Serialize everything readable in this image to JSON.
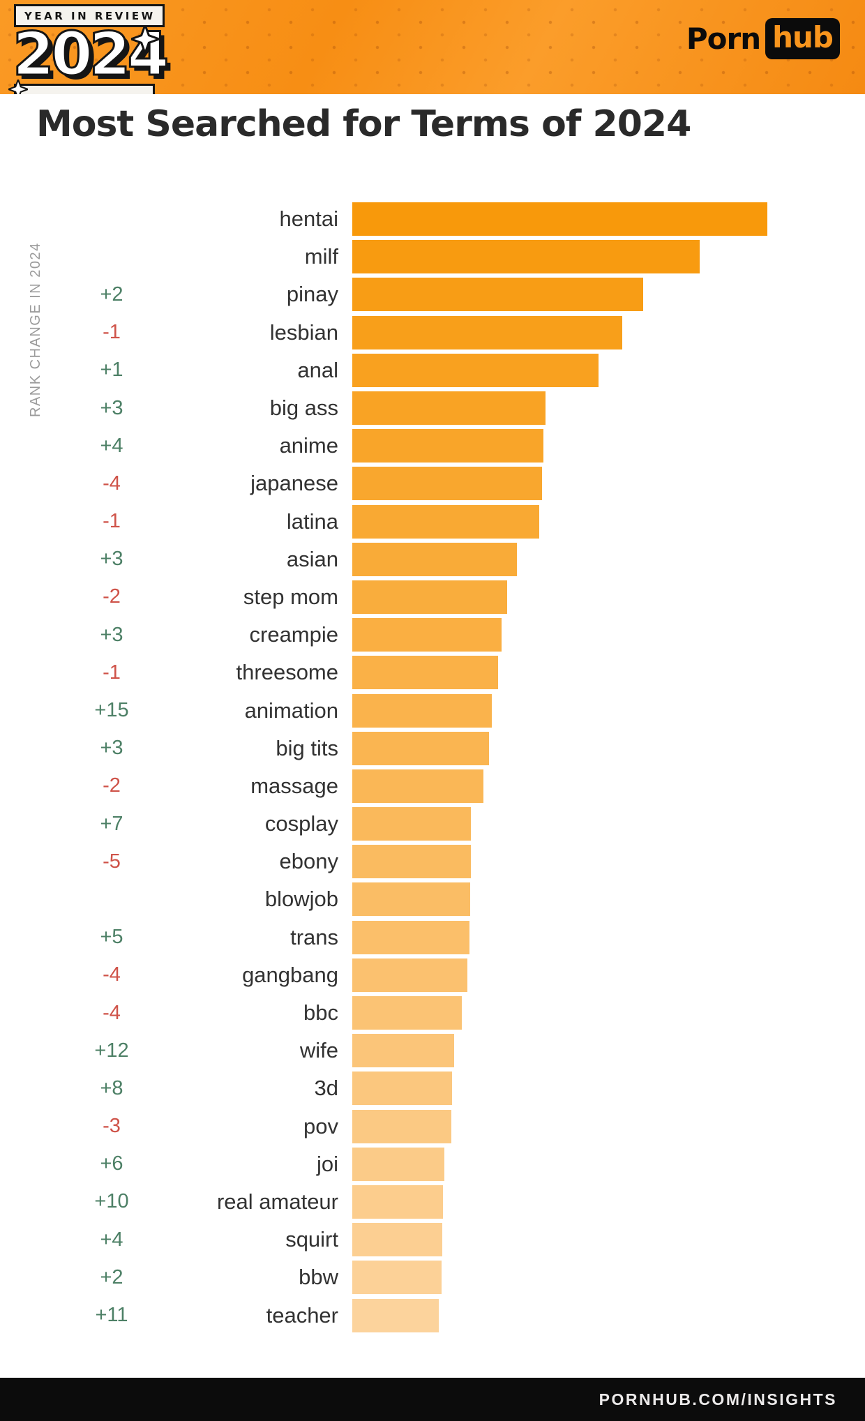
{
  "header": {
    "badge_label": "YEAR IN REVIEW",
    "badge_year": "2024",
    "logo_part1": "Porn",
    "logo_part2": "hub"
  },
  "title": "Most Searched for Terms of 2024",
  "axis_label": "RANK CHANGE IN 2024",
  "footer": {
    "url": "PORNHUB.COM/INSIGHTS"
  },
  "colors": {
    "header_orange": "#f8921c",
    "bar_color_start": "#f8990b",
    "bar_color_end": "#fcd39c",
    "positive_green": "#4d8066",
    "negative_red": "#cf5349",
    "text_dark": "#2a2a2a",
    "footer_black": "#0c0c0c"
  },
  "chart_data": {
    "type": "bar",
    "orientation": "horizontal",
    "title": "Most Searched for Terms of 2024",
    "note": "values are relative search volume, % of top term (estimated from bar lengths); no numeric axis shown in source",
    "legend": "none",
    "grid": false,
    "xlim": [
      0,
      100
    ],
    "categories": [
      "hentai",
      "milf",
      "pinay",
      "lesbian",
      "anal",
      "big ass",
      "anime",
      "japanese",
      "latina",
      "asian",
      "step mom",
      "creampie",
      "threesome",
      "animation",
      "big tits",
      "massage",
      "cosplay",
      "ebony",
      "blowjob",
      "trans",
      "gangbang",
      "bbc",
      "wife",
      "3d",
      "pov",
      "joi",
      "real amateur",
      "squirt",
      "bbw",
      "teacher"
    ],
    "values": [
      100,
      83.7,
      70.1,
      65.0,
      59.3,
      46.6,
      46.1,
      45.7,
      45.0,
      39.7,
      37.3,
      36.0,
      35.1,
      33.6,
      32.9,
      31.6,
      28.6,
      28.5,
      28.4,
      28.2,
      27.7,
      26.4,
      24.5,
      24.0,
      23.9,
      22.2,
      21.8,
      21.7,
      21.5,
      20.8
    ],
    "rank_changes": [
      "",
      "",
      "+2",
      "-1",
      "+1",
      "+3",
      "+4",
      "-4",
      "-1",
      "+3",
      "-2",
      "+3",
      "-1",
      "+15",
      "+3",
      "-2",
      "+7",
      "-5",
      "",
      "+5",
      "-4",
      "-4",
      "+12",
      "+8",
      "-3",
      "+6",
      "+10",
      "+4",
      "+2",
      "+11"
    ],
    "rank_change_axis_label": "RANK CHANGE IN 2024",
    "bar_color_start": "#f8990b",
    "bar_color_end": "#fcd39c"
  }
}
